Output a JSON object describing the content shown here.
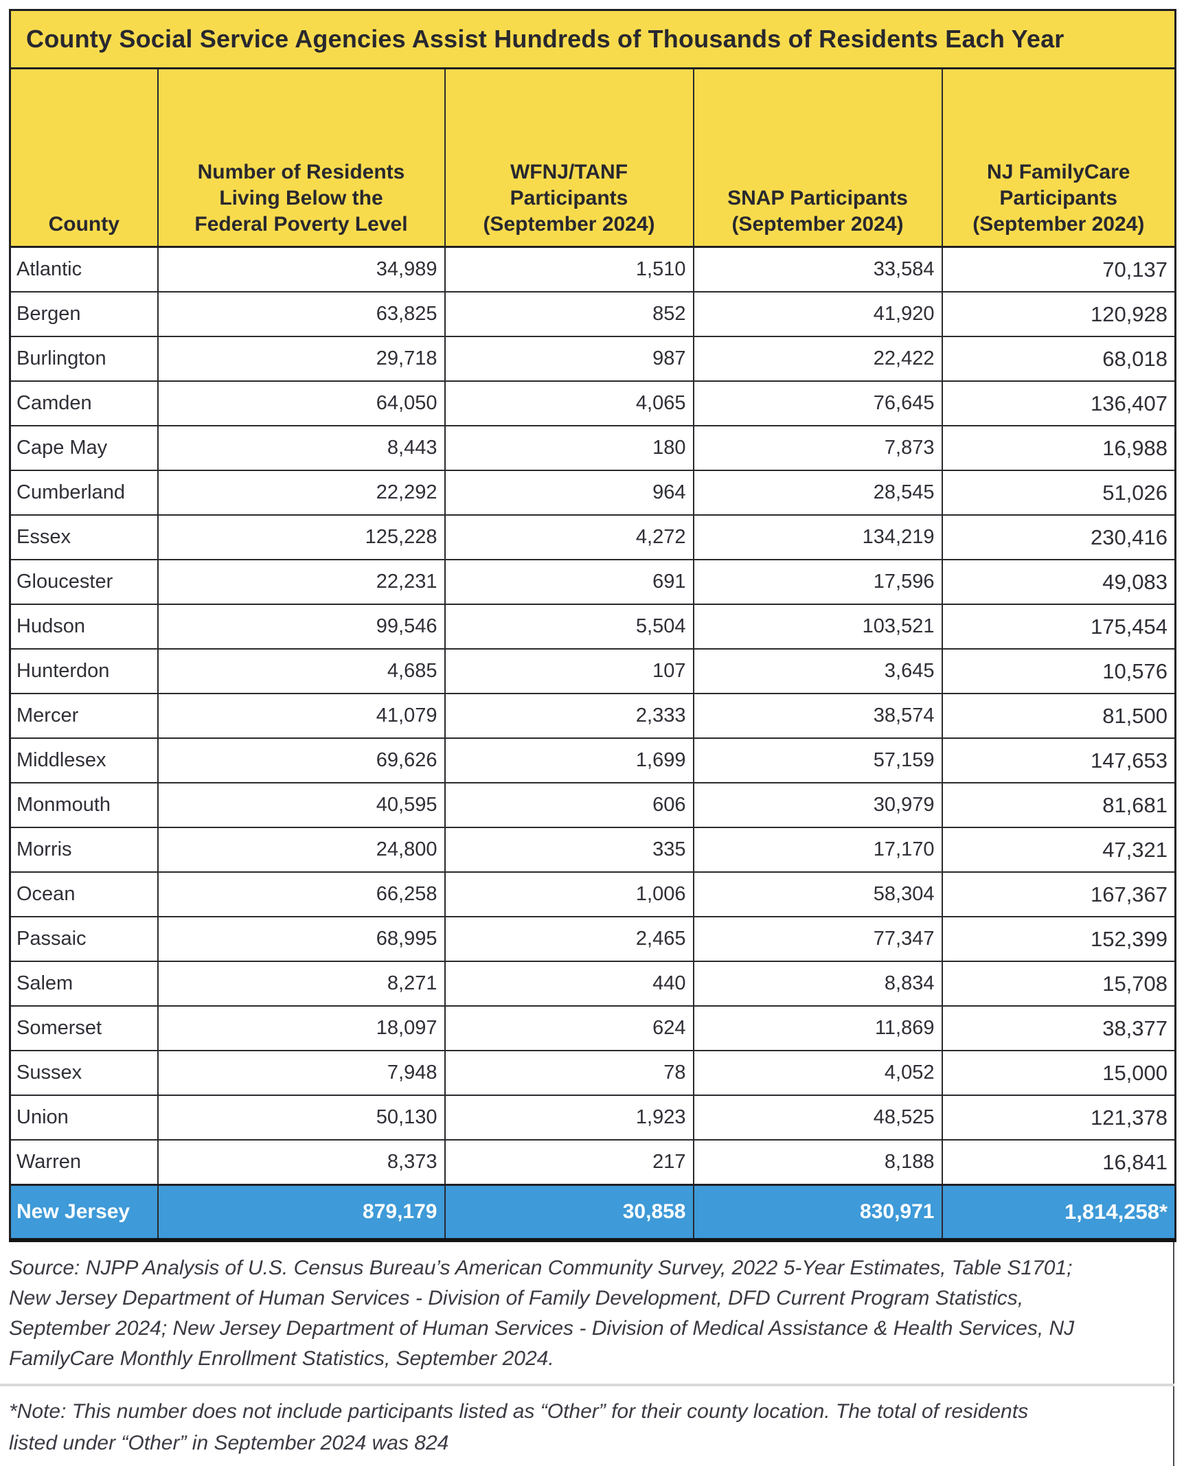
{
  "colors": {
    "header_yellow": "#F8DB4D",
    "total_blue": "#3E9AD8",
    "title_text": "#28282F",
    "body_text": "#2F2F37",
    "border_dark": "#1F1F24",
    "divider_gray": "#DADADA",
    "total_text": "#FFFFFF"
  },
  "table": {
    "title": "County Social Service Agencies Assist Hundreds of Thousands of Residents Each Year",
    "columns": [
      "County",
      "Number of Residents\nLiving Below the\nFederal Poverty Level",
      "WFNJ/TANF\nParticipants\n(September 2024)",
      "SNAP Participants\n(September 2024)",
      "NJ FamilyCare\nParticipants\n(September 2024)"
    ],
    "rows": [
      {
        "county": "Atlantic",
        "poverty": "34,989",
        "wfnj": "1,510",
        "snap": "33,584",
        "familycare": "70,137"
      },
      {
        "county": "Bergen",
        "poverty": "63,825",
        "wfnj": "852",
        "snap": "41,920",
        "familycare": "120,928"
      },
      {
        "county": "Burlington",
        "poverty": "29,718",
        "wfnj": "987",
        "snap": "22,422",
        "familycare": "68,018"
      },
      {
        "county": "Camden",
        "poverty": "64,050",
        "wfnj": "4,065",
        "snap": "76,645",
        "familycare": "136,407"
      },
      {
        "county": "Cape May",
        "poverty": "8,443",
        "wfnj": "180",
        "snap": "7,873",
        "familycare": "16,988"
      },
      {
        "county": "Cumberland",
        "poverty": "22,292",
        "wfnj": "964",
        "snap": "28,545",
        "familycare": "51,026"
      },
      {
        "county": "Essex",
        "poverty": "125,228",
        "wfnj": "4,272",
        "snap": "134,219",
        "familycare": "230,416"
      },
      {
        "county": "Gloucester",
        "poverty": "22,231",
        "wfnj": "691",
        "snap": "17,596",
        "familycare": "49,083"
      },
      {
        "county": "Hudson",
        "poverty": "99,546",
        "wfnj": "5,504",
        "snap": "103,521",
        "familycare": "175,454"
      },
      {
        "county": "Hunterdon",
        "poverty": "4,685",
        "wfnj": "107",
        "snap": "3,645",
        "familycare": "10,576"
      },
      {
        "county": "Mercer",
        "poverty": "41,079",
        "wfnj": "2,333",
        "snap": "38,574",
        "familycare": "81,500"
      },
      {
        "county": "Middlesex",
        "poverty": "69,626",
        "wfnj": "1,699",
        "snap": "57,159",
        "familycare": "147,653"
      },
      {
        "county": "Monmouth",
        "poverty": "40,595",
        "wfnj": "606",
        "snap": "30,979",
        "familycare": "81,681"
      },
      {
        "county": "Morris",
        "poverty": "24,800",
        "wfnj": "335",
        "snap": "17,170",
        "familycare": "47,321"
      },
      {
        "county": "Ocean",
        "poverty": "66,258",
        "wfnj": "1,006",
        "snap": "58,304",
        "familycare": "167,367"
      },
      {
        "county": "Passaic",
        "poverty": "68,995",
        "wfnj": "2,465",
        "snap": "77,347",
        "familycare": "152,399"
      },
      {
        "county": "Salem",
        "poverty": "8,271",
        "wfnj": "440",
        "snap": "8,834",
        "familycare": "15,708"
      },
      {
        "county": "Somerset",
        "poverty": "18,097",
        "wfnj": "624",
        "snap": "11,869",
        "familycare": "38,377"
      },
      {
        "county": "Sussex",
        "poverty": "7,948",
        "wfnj": "78",
        "snap": "4,052",
        "familycare": "15,000"
      },
      {
        "county": "Union",
        "poverty": "50,130",
        "wfnj": "1,923",
        "snap": "48,525",
        "familycare": "121,378"
      },
      {
        "county": "Warren",
        "poverty": "8,373",
        "wfnj": "217",
        "snap": "8,188",
        "familycare": "16,841"
      }
    ],
    "total_row": {
      "county": "New Jersey",
      "poverty": "879,179",
      "wfnj": "30,858",
      "snap": "830,971",
      "familycare": "1,814,258*"
    }
  },
  "footnotes": {
    "source": "Source: NJPP Analysis of U.S. Census Bureau’s American Community Survey, 2022 5-Year Estimates, Table S1701; New Jersey Department of Human Services - Division of Family Development, DFD Current Program Statistics, September 2024; New Jersey Department of Human Services - Division of Medical Assistance & Health Services, NJ FamilyCare Monthly Enrollment Statistics, September 2024.",
    "note": "*Note: This number does not include participants listed as “Other” for their county location. The total of residents listed under “Other” in September 2024 was 824"
  },
  "chart_data": {
    "type": "table",
    "title": "County Social Service Agencies Assist Hundreds of Thousands of Residents Each Year",
    "columns": [
      "County",
      "Number of Residents Living Below the Federal Poverty Level",
      "WFNJ/TANF Participants (September 2024)",
      "SNAP Participants (September 2024)",
      "NJ FamilyCare Participants (September 2024)"
    ],
    "rows": [
      [
        "Atlantic",
        34989,
        1510,
        33584,
        70137
      ],
      [
        "Bergen",
        63825,
        852,
        41920,
        120928
      ],
      [
        "Burlington",
        29718,
        987,
        22422,
        68018
      ],
      [
        "Camden",
        64050,
        4065,
        76645,
        136407
      ],
      [
        "Cape May",
        8443,
        180,
        7873,
        16988
      ],
      [
        "Cumberland",
        22292,
        964,
        28545,
        51026
      ],
      [
        "Essex",
        125228,
        4272,
        134219,
        230416
      ],
      [
        "Gloucester",
        22231,
        691,
        17596,
        49083
      ],
      [
        "Hudson",
        99546,
        5504,
        103521,
        175454
      ],
      [
        "Hunterdon",
        4685,
        107,
        3645,
        10576
      ],
      [
        "Mercer",
        41079,
        2333,
        38574,
        81500
      ],
      [
        "Middlesex",
        69626,
        1699,
        57159,
        147653
      ],
      [
        "Monmouth",
        40595,
        606,
        30979,
        81681
      ],
      [
        "Morris",
        24800,
        335,
        17170,
        47321
      ],
      [
        "Ocean",
        66258,
        1006,
        58304,
        167367
      ],
      [
        "Passaic",
        68995,
        2465,
        77347,
        152399
      ],
      [
        "Salem",
        8271,
        440,
        8834,
        15708
      ],
      [
        "Somerset",
        18097,
        624,
        11869,
        38377
      ],
      [
        "Sussex",
        7948,
        78,
        4052,
        15000
      ],
      [
        "Union",
        50130,
        1923,
        48525,
        121378
      ],
      [
        "Warren",
        8373,
        217,
        8188,
        16841
      ]
    ],
    "total": [
      "New Jersey",
      879179,
      30858,
      830971,
      1814258
    ]
  }
}
